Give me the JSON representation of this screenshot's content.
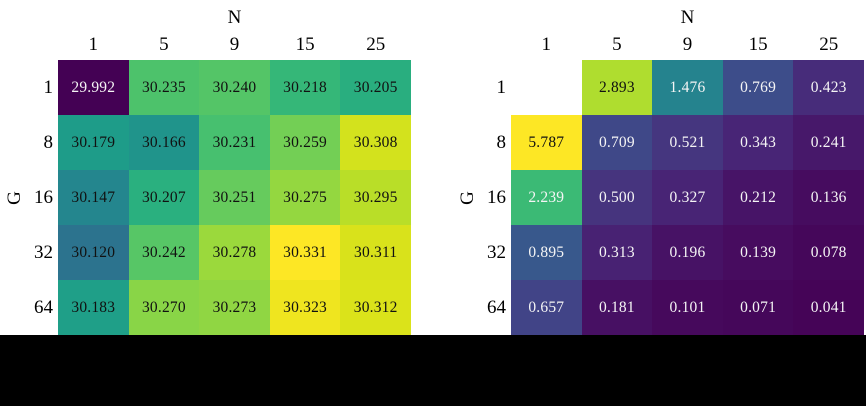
{
  "chart_data": [
    {
      "type": "heatmap",
      "position": "left",
      "xlabel": "N",
      "ylabel": "G",
      "x_ticks": [
        "1",
        "5",
        "9",
        "15",
        "25"
      ],
      "y_ticks": [
        "1",
        "8",
        "16",
        "32",
        "64"
      ],
      "values": [
        [
          "29.992",
          "30.235",
          "30.240",
          "30.218",
          "30.205"
        ],
        [
          "30.179",
          "30.166",
          "30.231",
          "30.259",
          "30.308"
        ],
        [
          "30.147",
          "30.207",
          "30.251",
          "30.275",
          "30.295"
        ],
        [
          "30.120",
          "30.242",
          "30.278",
          "30.331",
          "30.311"
        ],
        [
          "30.183",
          "30.270",
          "30.273",
          "30.323",
          "30.312"
        ]
      ],
      "colormap": "viridis",
      "norm": {
        "vmin": 29.992,
        "vmax": 30.331
      },
      "light_text_below_frac": 0.25,
      "grid": "off",
      "legend": "none"
    },
    {
      "type": "heatmap",
      "position": "right",
      "xlabel": "N",
      "ylabel": "G",
      "x_ticks": [
        "1",
        "5",
        "9",
        "15",
        "25"
      ],
      "y_ticks": [
        "1",
        "8",
        "16",
        "32",
        "64"
      ],
      "values": [
        [
          null,
          "2.893",
          "1.476",
          "0.769",
          "0.423"
        ],
        [
          "5.787",
          "0.709",
          "0.521",
          "0.343",
          "0.241"
        ],
        [
          "2.239",
          "0.500",
          "0.327",
          "0.212",
          "0.136"
        ],
        [
          "0.895",
          "0.313",
          "0.196",
          "0.139",
          "0.078"
        ],
        [
          "0.657",
          "0.181",
          "0.101",
          "0.071",
          "0.041"
        ]
      ],
      "colormap": "viridis",
      "norm": {
        "vmin": 0,
        "vmax": 3.3
      },
      "light_text_below_frac": 0.75,
      "grid": "off",
      "legend": "none"
    }
  ],
  "palette": {
    "viridis": [
      "#440154",
      "#470e61",
      "#482475",
      "#46337e",
      "#414487",
      "#3b528b",
      "#355f8d",
      "#2f6c8e",
      "#2a788e",
      "#25848e",
      "#21918c",
      "#1e9c89",
      "#22a884",
      "#2eb37c",
      "#44bf70",
      "#5ec962",
      "#7ad151",
      "#a0da39",
      "#bddf26",
      "#dfe318",
      "#fde725"
    ]
  },
  "colors": {
    "background": "#ffffff",
    "tick_text": "#000000",
    "annotation_dark": "#111111",
    "annotation_light": "#f5f5f5",
    "empty_cell": "#ffffff",
    "footer_bar": "#000000"
  }
}
